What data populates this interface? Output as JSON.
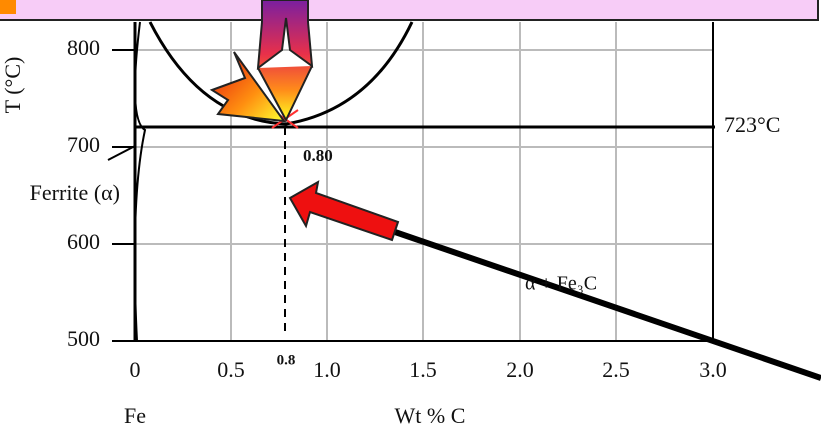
{
  "axis": {
    "y_label": "T (°C)",
    "y_ticks": [
      "800",
      "700",
      "600",
      "500"
    ],
    "x_ticks": [
      "0",
      "0.5",
      "1.0",
      "1.5",
      "2.0",
      "2.5",
      "3.0"
    ],
    "x_label": "Wt  % C",
    "x_origin_label": "Fe"
  },
  "annotations": {
    "eutectoid_temp": "723°C",
    "eutectoid_comp": "0.80",
    "eutectoid_mark": "0.8",
    "ferrite": "Ferrite (α)",
    "two_phase": "α + Fe₃C"
  }
}
